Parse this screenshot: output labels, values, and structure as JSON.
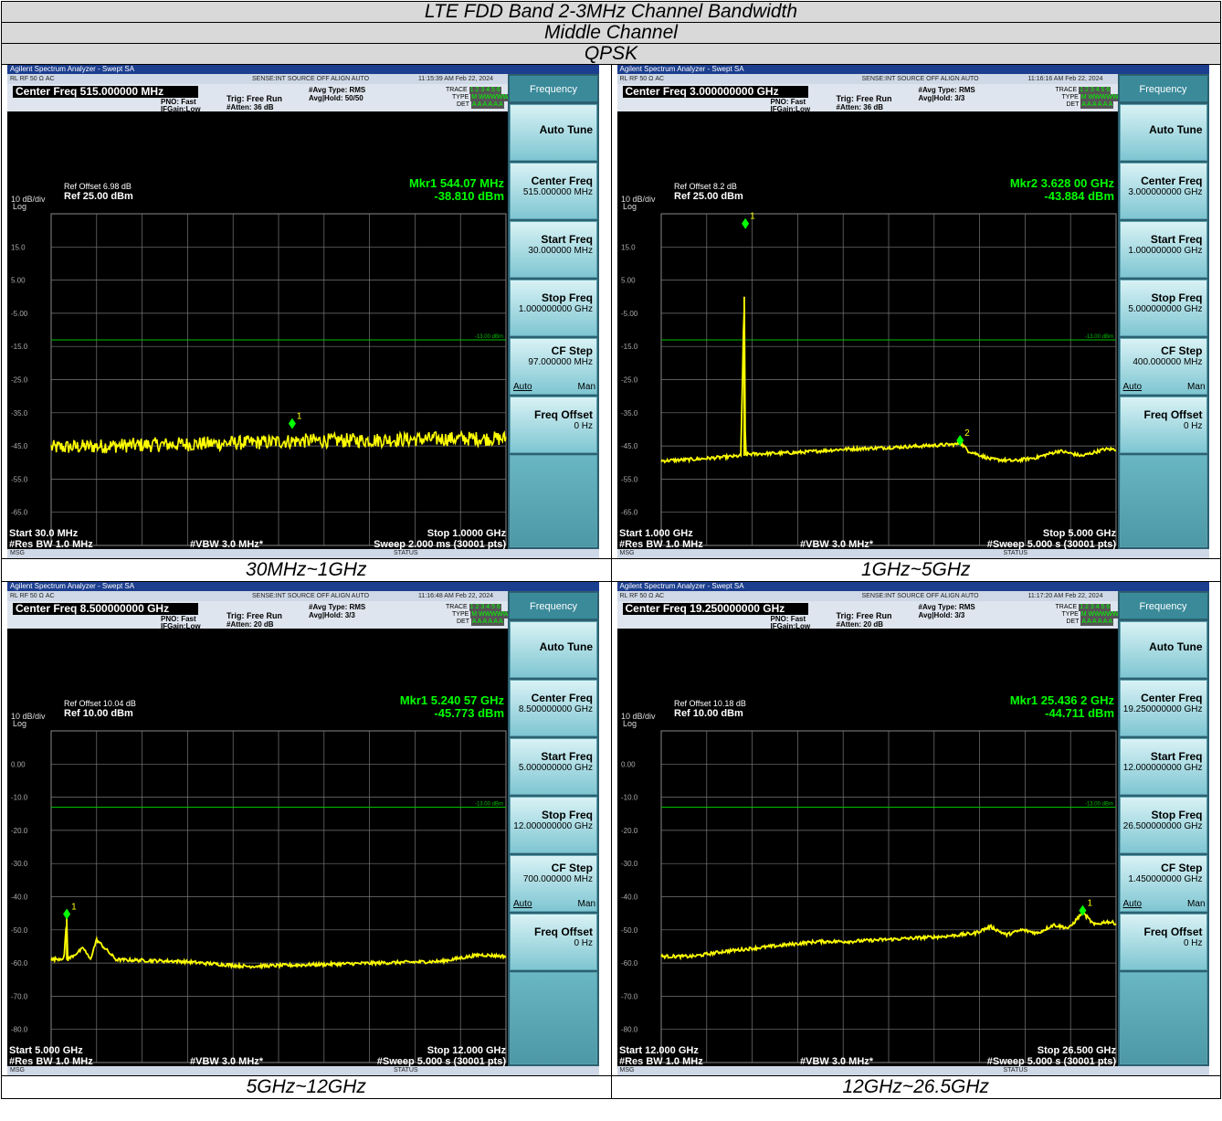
{
  "header": {
    "title": "LTE FDD Band 2-3MHz Channel Bandwidth",
    "channel": "Middle Channel",
    "modulation": "QPSK"
  },
  "panels": [
    {
      "caption": "30MHz~1GHz",
      "window_title": "Agilent Spectrum Analyzer - Swept SA",
      "status_left": "RL      RF    50 Ω  AC",
      "status_mid": "SENSE:INT  SOURCE OFF      ALIGN AUTO",
      "timestamp": "11:15:39 AM Feb 22, 2024",
      "center_freq": "Center Freq 515.000000 MHz",
      "pno": "PNO: Fast",
      "ifgain": "IFGain:Low",
      "trig": "Trig: Free Run",
      "atten": "#Atten: 36 dB",
      "avg_type": "#Avg Type: RMS",
      "avg_hold": "Avg|Hold: 50/50",
      "trace_lbl": "TRACE",
      "type_lbl": "TYPE",
      "det_lbl": "DET",
      "trace_nums": "1 2 3 4 5 6",
      "type_vals": "M WWWWW",
      "det_vals": "A A A A A A",
      "ref_offset": "Ref Offset 6.98 dB",
      "ref_level": "Ref 25.00 dBm",
      "scale": "10 dB/div",
      "log": "Log",
      "marker_label": "Mkr1 544.07 MHz",
      "marker_value": "-38.810 dBm",
      "limit_label": "-13.00 dBm",
      "start": "Start 30.0 MHz",
      "stop": "Stop 1.0000 GHz",
      "rbw": "#Res BW 1.0 MHz",
      "vbw": "#VBW 3.0 MHz*",
      "sweep": "Sweep  2.000 ms (30001 pts)",
      "msg": "MSG",
      "status": "STATUS",
      "softkeys": {
        "header": "Frequency",
        "auto_tune": "Auto Tune",
        "center_title": "Center Freq",
        "center_value": "515.000000 MHz",
        "start_title": "Start Freq",
        "start_value": "30.000000 MHz",
        "stop_title": "Stop Freq",
        "stop_value": "1.000000000 GHz",
        "cf_title": "CF Step",
        "cf_value": "97.000000 MHz",
        "auto": "Auto",
        "man": "Man",
        "offset_title": "Freq Offset",
        "offset_value": "0 Hz"
      }
    },
    {
      "caption": "1GHz~5GHz",
      "window_title": "Agilent Spectrum Analyzer - Swept SA",
      "status_left": "RL      RF    50 Ω  AC",
      "status_mid": "SENSE:INT  SOURCE OFF      ALIGN AUTO",
      "timestamp": "11:16:16 AM Feb 22, 2024",
      "center_freq": "Center Freq 3.000000000 GHz",
      "pno": "PNO: Fast",
      "ifgain": "IFGain:Low",
      "trig": "Trig: Free Run",
      "atten": "#Atten: 36 dB",
      "avg_type": "#Avg Type: RMS",
      "avg_hold": "Avg|Hold: 3/3",
      "trace_lbl": "TRACE",
      "type_lbl": "TYPE",
      "det_lbl": "DET",
      "trace_nums": "1 2 3 4 5 6",
      "type_vals": "M WWWWW",
      "det_vals": "A A A A A A",
      "ref_offset": "Ref Offset 8.2 dB",
      "ref_level": "Ref 25.00 dBm",
      "scale": "10 dB/div",
      "log": "Log",
      "marker_label": "Mkr2 3.628 00 GHz",
      "marker_value": "-43.884 dBm",
      "limit_label": "-13.00 dBm",
      "start": "Start 1.000 GHz",
      "stop": "Stop 5.000 GHz",
      "rbw": "#Res BW 1.0 MHz",
      "vbw": "#VBW 3.0 MHz*",
      "sweep": "#Sweep  5.000 s (30001 pts)",
      "msg": "MSG",
      "status": "STATUS",
      "softkeys": {
        "header": "Frequency",
        "auto_tune": "Auto Tune",
        "center_title": "Center Freq",
        "center_value": "3.000000000 GHz",
        "start_title": "Start Freq",
        "start_value": "1.000000000 GHz",
        "stop_title": "Stop Freq",
        "stop_value": "5.000000000 GHz",
        "cf_title": "CF Step",
        "cf_value": "400.000000 MHz",
        "auto": "Auto",
        "man": "Man",
        "offset_title": "Freq Offset",
        "offset_value": "0 Hz"
      }
    },
    {
      "caption": "5GHz~12GHz",
      "window_title": "Agilent Spectrum Analyzer - Swept SA",
      "status_left": "RL      RF    50 Ω  AC",
      "status_mid": "SENSE:INT  SOURCE OFF      ALIGN AUTO",
      "timestamp": "11:16:48 AM Feb 22, 2024",
      "center_freq": "Center Freq 8.500000000 GHz",
      "pno": "PNO: Fast",
      "ifgain": "IFGain:Low",
      "trig": "Trig: Free Run",
      "atten": "#Atten: 20 dB",
      "avg_type": "#Avg Type: RMS",
      "avg_hold": "Avg|Hold: 3/3",
      "trace_lbl": "TRACE",
      "type_lbl": "TYPE",
      "det_lbl": "DET",
      "trace_nums": "1 2 3 4 5 6",
      "type_vals": "M WWWWW",
      "det_vals": "A A A A A A",
      "ref_offset": "Ref Offset 10.04 dB",
      "ref_level": "Ref 10.00 dBm",
      "scale": "10 dB/div",
      "log": "Log",
      "marker_label": "Mkr1 5.240 57 GHz",
      "marker_value": "-45.773 dBm",
      "limit_label": "-13.00 dBm",
      "start": "Start 5.000 GHz",
      "stop": "Stop 12.000 GHz",
      "rbw": "#Res BW 1.0 MHz",
      "vbw": "#VBW 3.0 MHz*",
      "sweep": "#Sweep  5.000 s (30001 pts)",
      "msg": "MSG",
      "status": "STATUS",
      "softkeys": {
        "header": "Frequency",
        "auto_tune": "Auto Tune",
        "center_title": "Center Freq",
        "center_value": "8.500000000 GHz",
        "start_title": "Start Freq",
        "start_value": "5.000000000 GHz",
        "stop_title": "Stop Freq",
        "stop_value": "12.000000000 GHz",
        "cf_title": "CF Step",
        "cf_value": "700.000000 MHz",
        "auto": "Auto",
        "man": "Man",
        "offset_title": "Freq Offset",
        "offset_value": "0 Hz"
      }
    },
    {
      "caption": "12GHz~26.5GHz",
      "window_title": "Agilent Spectrum Analyzer - Swept SA",
      "status_left": "RL      RF    50 Ω  AC",
      "status_mid": "SENSE:INT  SOURCE OFF      ALIGN AUTO",
      "timestamp": "11:17:20 AM Feb 22, 2024",
      "center_freq": "Center Freq 19.250000000 GHz",
      "pno": "PNO: Fast",
      "ifgain": "IFGain:Low",
      "trig": "Trig: Free Run",
      "atten": "#Atten: 20 dB",
      "avg_type": "#Avg Type: RMS",
      "avg_hold": "Avg|Hold: 3/3",
      "trace_lbl": "TRACE",
      "type_lbl": "TYPE",
      "det_lbl": "DET",
      "trace_nums": "1 2 3 4 5 6",
      "type_vals": "M WWWWW",
      "det_vals": "A A A A A A",
      "ref_offset": "Ref Offset 10.18 dB",
      "ref_level": "Ref 10.00 dBm",
      "scale": "10 dB/div",
      "log": "Log",
      "marker_label": "Mkr1 25.436 2 GHz",
      "marker_value": "-44.711 dBm",
      "limit_label": "-13.00 dBm",
      "start": "Start 12.000 GHz",
      "stop": "Stop 26.500 GHz",
      "rbw": "#Res BW 1.0 MHz",
      "vbw": "#VBW 3.0 MHz*",
      "sweep": "#Sweep  5.000 s (30001 pts)",
      "msg": "MSG",
      "status": "STATUS",
      "softkeys": {
        "header": "Frequency",
        "auto_tune": "Auto Tune",
        "center_title": "Center Freq",
        "center_value": "19.250000000 GHz",
        "start_title": "Start Freq",
        "start_value": "12.000000000 GHz",
        "stop_title": "Stop Freq",
        "stop_value": "26.500000000 GHz",
        "cf_title": "CF Step",
        "cf_value": "1.450000000 GHz",
        "auto": "Auto",
        "man": "Man",
        "offset_title": "Freq Offset",
        "offset_value": "0 Hz"
      }
    }
  ],
  "chart_data": [
    {
      "type": "line",
      "x_unit": "MHz",
      "xlim": [
        30,
        1000
      ],
      "ylim": [
        -75,
        25
      ],
      "ytick_labels": [
        "15.0",
        "5.00",
        "-5.00",
        "-15.0",
        "-25.0",
        "-35.0",
        "-45.0",
        "-55.0",
        "-65.0"
      ],
      "limit_line_dbm": -13,
      "trace_color": "#ffff00",
      "noise_level": "high",
      "series": [
        {
          "x": [
            30,
            100,
            200,
            300,
            400,
            500,
            544.07,
            600,
            700,
            800,
            900,
            1000
          ],
          "y": [
            -45.5,
            -45.2,
            -44.8,
            -44.5,
            -44.2,
            -43.8,
            -43.5,
            -43.4,
            -43.3,
            -43.0,
            -42.8,
            -42.8
          ]
        }
      ],
      "markers": [
        {
          "label": "1",
          "x": 544.07,
          "y": -38.81
        }
      ]
    },
    {
      "type": "line",
      "x_unit": "GHz",
      "xlim": [
        1,
        5
      ],
      "ylim": [
        -75,
        25
      ],
      "ytick_labels": [
        "15.0",
        "5.00",
        "-5.00",
        "-15.0",
        "-25.0",
        "-35.0",
        "-45.0",
        "-55.0",
        "-65.0"
      ],
      "limit_line_dbm": -13,
      "trace_color": "#ffff00",
      "noise_level": "low",
      "series": [
        {
          "x": [
            1.0,
            1.3,
            1.7,
            1.73,
            1.74,
            1.75,
            2.2,
            2.6,
            3.0,
            3.3,
            3.6,
            3.628,
            3.7,
            3.9,
            4.1,
            4.3,
            4.5,
            4.7,
            4.9,
            5.0
          ],
          "y": [
            -49.5,
            -49.0,
            -48.0,
            0.0,
            -48.0,
            -47.5,
            -47.0,
            -46.0,
            -45.5,
            -45.0,
            -44.5,
            -43.9,
            -46.5,
            -49.0,
            -49.5,
            -48.5,
            -46.5,
            -48.0,
            -46.0,
            -46.0
          ]
        }
      ],
      "markers": [
        {
          "label": "1",
          "x": 1.74,
          "y": 21.5
        },
        {
          "label": "2",
          "x": 3.628,
          "y": -43.884
        }
      ]
    },
    {
      "type": "line",
      "x_unit": "GHz",
      "xlim": [
        5,
        12
      ],
      "ylim": [
        -90,
        10
      ],
      "ytick_labels": [
        "0.00",
        "-10.0",
        "-20.0",
        "-30.0",
        "-40.0",
        "-50.0",
        "-60.0",
        "-70.0",
        "-80.0"
      ],
      "limit_line_dbm": -13,
      "trace_color": "#ffff00",
      "noise_level": "low",
      "series": [
        {
          "x": [
            5.0,
            5.2,
            5.24,
            5.25,
            5.5,
            5.6,
            5.7,
            6.0,
            7.0,
            8.0,
            9.0,
            10.0,
            11.0,
            11.6,
            12.0
          ],
          "y": [
            -59.0,
            -58.5,
            -45.8,
            -59.0,
            -55.5,
            -59.0,
            -53.0,
            -59.0,
            -59.5,
            -61.0,
            -60.5,
            -60.0,
            -59.5,
            -57.5,
            -58.0
          ]
        }
      ],
      "markers": [
        {
          "label": "1",
          "x": 5.24057,
          "y": -45.773
        }
      ]
    },
    {
      "type": "line",
      "x_unit": "GHz",
      "xlim": [
        12,
        26.5
      ],
      "ylim": [
        -90,
        10
      ],
      "ytick_labels": [
        "0.00",
        "-10.0",
        "-20.0",
        "-30.0",
        "-40.0",
        "-50.0",
        "-60.0",
        "-70.0",
        "-80.0"
      ],
      "limit_line_dbm": -13,
      "trace_color": "#ffff00",
      "noise_level": "low",
      "series": [
        {
          "x": [
            12,
            13,
            14,
            15,
            16,
            17,
            18,
            19,
            20,
            21,
            22,
            22.5,
            23,
            23.5,
            24,
            24.5,
            25,
            25.436,
            25.8,
            26.2,
            26.5
          ],
          "y": [
            -58.0,
            -58.0,
            -56.5,
            -55.5,
            -54.5,
            -53.5,
            -53.5,
            -53.0,
            -52.5,
            -52.0,
            -51.0,
            -49.0,
            -51.5,
            -50.0,
            -51.0,
            -48.5,
            -49.5,
            -44.7,
            -48.5,
            -47.5,
            -48.0
          ]
        }
      ],
      "markers": [
        {
          "label": "1",
          "x": 25.4362,
          "y": -44.711
        }
      ]
    }
  ]
}
